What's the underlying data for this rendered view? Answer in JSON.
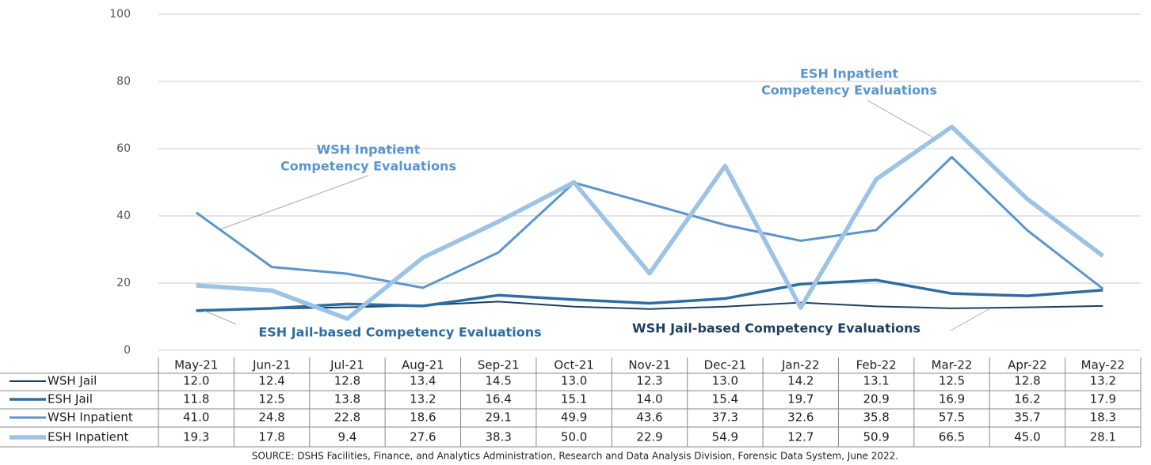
{
  "chart_data": {
    "type": "line",
    "categories": [
      "May-21",
      "Jun-21",
      "Jul-21",
      "Aug-21",
      "Sep-21",
      "Oct-21",
      "Nov-21",
      "Dec-21",
      "Jan-22",
      "Feb-22",
      "Mar-22",
      "Apr-22",
      "May-22"
    ],
    "series": [
      {
        "name": "WSH Jail",
        "color": "#1f3f5f",
        "values": [
          12.0,
          12.4,
          12.8,
          13.4,
          14.5,
          13.0,
          12.3,
          13.0,
          14.2,
          13.1,
          12.5,
          12.8,
          13.2
        ],
        "value_labels": [
          "12.0",
          "12.4",
          "12.8",
          "13.4",
          "14.5",
          "13.0",
          "12.3",
          "13.0",
          "14.2",
          "13.1",
          "12.5",
          "12.8",
          "13.2"
        ]
      },
      {
        "name": "ESH Jail",
        "color": "#2e6da4",
        "values": [
          11.8,
          12.5,
          13.8,
          13.2,
          16.4,
          15.1,
          14.0,
          15.4,
          19.7,
          20.9,
          16.9,
          16.2,
          17.9
        ],
        "value_labels": [
          "11.8",
          "12.5",
          "13.8",
          "13.2",
          "16.4",
          "15.1",
          "14.0",
          "15.4",
          "19.7",
          "20.9",
          "16.9",
          "16.2",
          "17.9"
        ]
      },
      {
        "name": "WSH Inpatient",
        "color": "#5b95cc",
        "values": [
          41.0,
          24.8,
          22.8,
          18.6,
          29.1,
          49.9,
          43.6,
          37.3,
          32.6,
          35.8,
          57.5,
          35.7,
          18.3
        ],
        "value_labels": [
          "41.0",
          "24.8",
          "22.8",
          "18.6",
          "29.1",
          "49.9",
          "43.6",
          "37.3",
          "32.6",
          "35.8",
          "57.5",
          "35.7",
          "18.3"
        ]
      },
      {
        "name": "ESH Inpatient",
        "color": "#9cc3e6",
        "values": [
          19.3,
          17.8,
          9.4,
          27.6,
          38.3,
          50.0,
          22.9,
          54.9,
          12.7,
          50.9,
          66.5,
          45.0,
          28.1
        ],
        "value_labels": [
          "19.3",
          "17.8",
          "9.4",
          "27.6",
          "38.3",
          "50.0",
          "22.9",
          "54.9",
          "12.7",
          "50.9",
          "66.5",
          "45.0",
          "28.1"
        ]
      }
    ],
    "ylim": [
      0,
      100
    ],
    "yticks": [
      0,
      20,
      40,
      60,
      80,
      100
    ],
    "grid": true,
    "annotations": [
      {
        "lines": [
          "WSH Inpatient",
          "Competency Evaluations"
        ],
        "color": "#5b95cc"
      },
      {
        "lines": [
          "ESH Inpatient",
          "Competency Evaluations"
        ],
        "color": "#5b95cc"
      },
      {
        "lines": [
          "ESH Jail-based Competency Evaluations"
        ],
        "color": "#2e6da4"
      },
      {
        "lines": [
          "WSH Jail-based Competency Evaluations"
        ],
        "color": "#1f3f5f"
      }
    ],
    "source": "SOURCE: DSHS Facilities, Finance, and Analytics Administration, Research and Data Analysis Division, Forensic Data System, June 2022."
  }
}
